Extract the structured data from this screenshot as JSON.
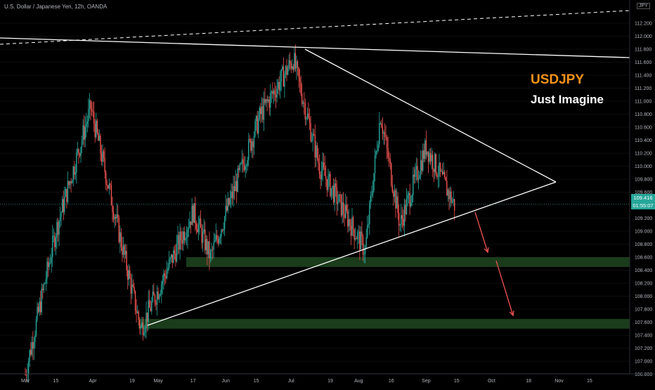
{
  "symbol_description": "U.S. Dollar / Japanese Yen, 12h, OANDA",
  "annotation": {
    "title": "USDJPY",
    "subtitle": "Just Imagine"
  },
  "price_axis": {
    "currency": "JPY",
    "current_price": "109.416",
    "countdown": "01:55:07"
  },
  "colors": {
    "background": "#000000",
    "bull": "#26a69a",
    "bear": "#ef5350",
    "zone": "#1e4620",
    "trendline": "#ffffff",
    "projection_arrow": "#ef5350",
    "title_accent": "#f7941d"
  },
  "chart_data": {
    "type": "candlestick",
    "title": "U.S. Dollar / Japanese Yen, 12h, OANDA",
    "ylim": [
      106.75,
      112.4
    ],
    "y_ticks": [
      "112.200",
      "112.000",
      "111.800",
      "111.600",
      "111.400",
      "111.200",
      "111.000",
      "110.800",
      "110.600",
      "110.400",
      "110.200",
      "110.000",
      "109.800",
      "109.600",
      "109.400",
      "109.200",
      "109.000",
      "108.800",
      "108.600",
      "108.400",
      "108.200",
      "108.000",
      "107.800",
      "107.600",
      "107.400",
      "107.200",
      "107.000",
      "106.800"
    ],
    "x_ticks": [
      "Mar",
      "15",
      "Apr",
      "19",
      "May",
      "17",
      "Jun",
      "15",
      "Jul",
      "19",
      "Aug",
      "16",
      "Sep",
      "15",
      "Oct",
      "18",
      "Nov",
      "15"
    ],
    "price_path": [
      {
        "x": "Mar 1",
        "y": 106.8
      },
      {
        "x": "Mar 15",
        "y": 109.0
      },
      {
        "x": "Mar 31",
        "y": 110.9
      },
      {
        "x": "Apr 23",
        "y": 107.5
      },
      {
        "x": "May 17",
        "y": 109.3
      },
      {
        "x": "May 25",
        "y": 108.6
      },
      {
        "x": "Jun 17",
        "y": 110.8
      },
      {
        "x": "Jul 2",
        "y": 111.65
      },
      {
        "x": "Jul 14",
        "y": 110.0
      },
      {
        "x": "Aug 4",
        "y": 108.7
      },
      {
        "x": "Aug 11",
        "y": 110.8
      },
      {
        "x": "Aug 20",
        "y": 109.1
      },
      {
        "x": "Sep 1",
        "y": 110.3
      },
      {
        "x": "Sep 14",
        "y": 109.4
      }
    ],
    "support_zones": [
      {
        "y_low": 108.45,
        "y_high": 108.6
      },
      {
        "y_low": 107.5,
        "y_high": 107.65
      }
    ],
    "current_price": 109.416
  }
}
